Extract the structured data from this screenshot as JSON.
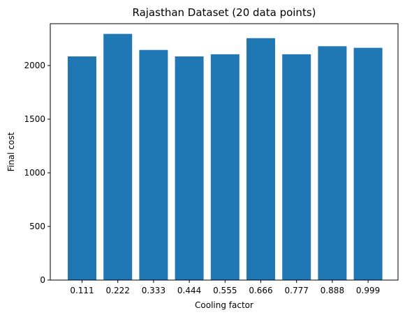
{
  "chart_data": {
    "type": "bar",
    "title": "Rajasthan Dataset (20 data points)",
    "xlabel": "Cooling factor",
    "ylabel": "Final cost",
    "categories": [
      "0.111",
      "0.222",
      "0.333",
      "0.444",
      "0.555",
      "0.666",
      "0.777",
      "0.888",
      "0.999"
    ],
    "values": [
      2085,
      2295,
      2145,
      2085,
      2105,
      2255,
      2105,
      2180,
      2165
    ],
    "ylim": [
      0,
      2390
    ],
    "yticks": [
      "0",
      "500",
      "1000",
      "1500",
      "2000"
    ],
    "grid": false,
    "bar_color": "#1f77b4"
  }
}
